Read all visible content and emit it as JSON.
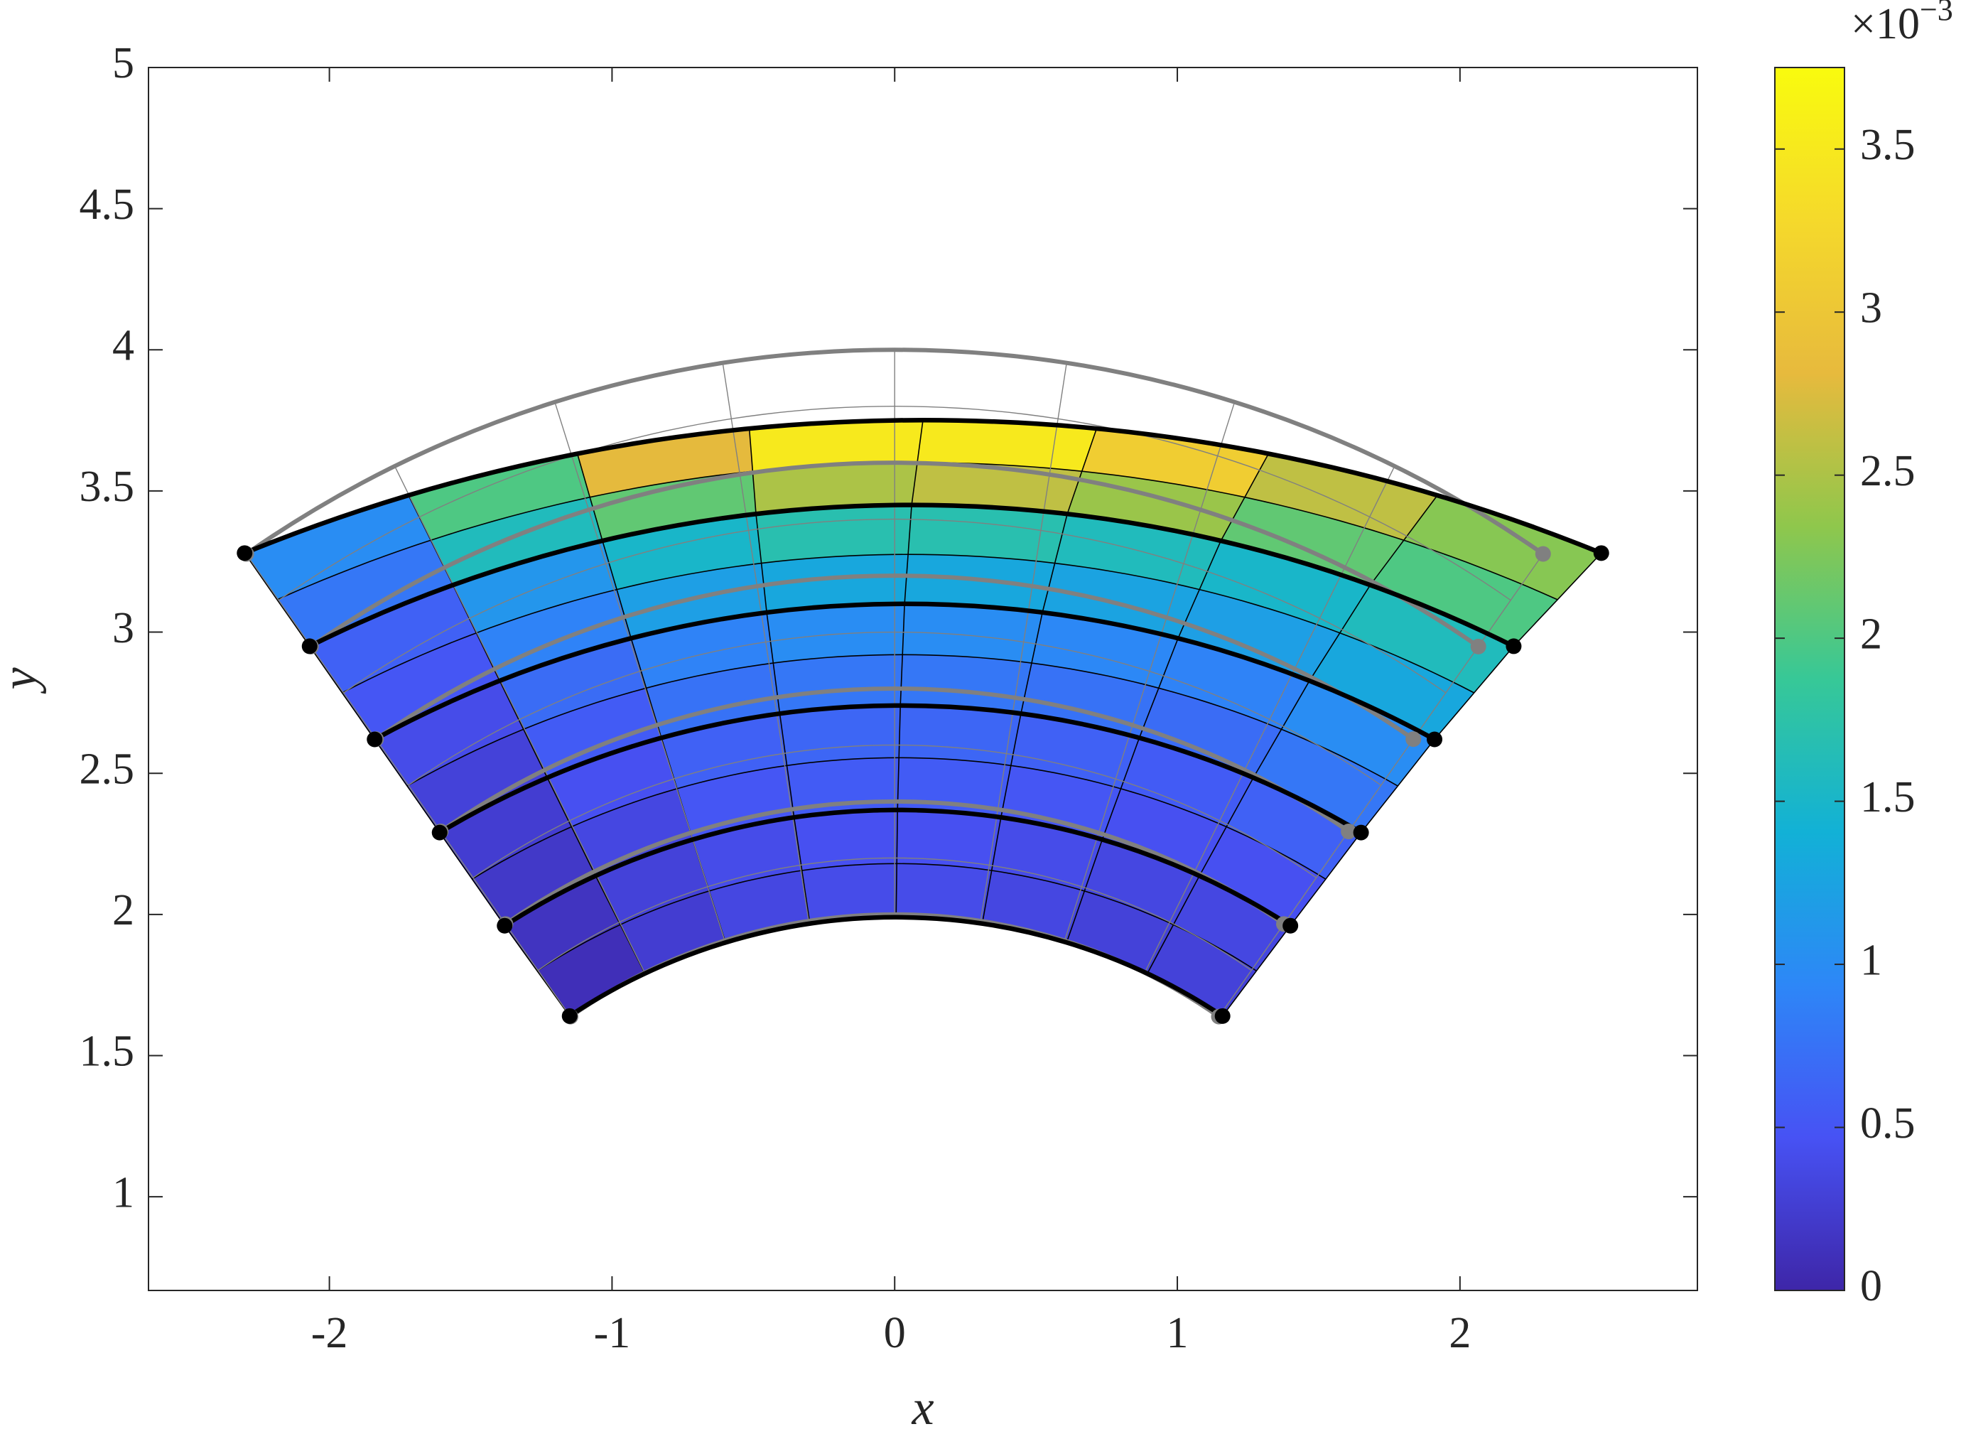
{
  "chart_data": {
    "type": "mesh",
    "xlabel": "x",
    "ylabel": "y",
    "xlim": [
      -2.64,
      2.84
    ],
    "ylim": [
      0.668,
      5
    ],
    "xticks": [
      -2,
      -1,
      0,
      1,
      2
    ],
    "yticks": [
      1,
      1.5,
      2,
      2.5,
      3,
      3.5,
      4,
      4.5,
      5
    ],
    "undeformed": {
      "color": "#808080",
      "curves": [
        {
          "x": [
            -1.147,
            0,
            1.147
          ],
          "y": [
            1.638,
            2,
            1.638
          ]
        },
        {
          "x": [
            -1.377,
            0,
            1.377
          ],
          "y": [
            1.966,
            2.4,
            1.966
          ]
        },
        {
          "x": [
            -1.606,
            0,
            1.606
          ],
          "y": [
            2.294,
            2.8,
            2.294
          ]
        },
        {
          "x": [
            -1.835,
            0,
            1.835
          ],
          "y": [
            2.621,
            3.2,
            2.621
          ]
        },
        {
          "x": [
            -2.065,
            0,
            2.065
          ],
          "y": [
            2.949,
            3.6,
            2.949
          ]
        },
        {
          "x": [
            -2.294,
            0,
            2.294
          ],
          "y": [
            3.277,
            4,
            3.277
          ]
        }
      ]
    },
    "deformed": {
      "color": "#000000",
      "curves": [
        {
          "x": [
            -1.15,
            0,
            1.16
          ],
          "y": [
            1.64,
            1.99,
            1.64
          ]
        },
        {
          "x": [
            -1.38,
            0,
            1.4
          ],
          "y": [
            1.96,
            2.37,
            1.96
          ]
        },
        {
          "x": [
            -1.61,
            0,
            1.65
          ],
          "y": [
            2.29,
            2.74,
            2.29
          ]
        },
        {
          "x": [
            -1.84,
            0,
            1.91
          ],
          "y": [
            2.62,
            3.1,
            2.62
          ]
        },
        {
          "x": [
            -2.07,
            0,
            2.19
          ],
          "y": [
            2.95,
            3.45,
            2.95
          ]
        },
        {
          "x": [
            -2.3,
            0,
            2.5
          ],
          "y": [
            3.28,
            3.75,
            3.28
          ]
        }
      ]
    },
    "cell_values": [
      [
        0.1,
        0.25,
        0.35,
        0.4,
        0.4,
        0.35,
        0.3,
        0.3
      ],
      [
        0.15,
        0.3,
        0.4,
        0.45,
        0.45,
        0.4,
        0.35,
        0.35
      ],
      [
        0.2,
        0.35,
        0.5,
        0.55,
        0.55,
        0.5,
        0.45,
        0.45
      ],
      [
        0.25,
        0.45,
        0.6,
        0.65,
        0.65,
        0.6,
        0.55,
        0.6
      ],
      [
        0.3,
        0.55,
        0.75,
        0.8,
        0.8,
        0.75,
        0.7,
        0.8
      ],
      [
        0.4,
        0.7,
        0.9,
        1.0,
        1.0,
        0.95,
        0.9,
        1.0
      ],
      [
        0.5,
        0.9,
        1.2,
        1.3,
        1.3,
        1.25,
        1.2,
        1.3
      ],
      [
        0.6,
        1.1,
        1.5,
        1.7,
        1.7,
        1.6,
        1.5,
        1.6
      ],
      [
        0.8,
        1.6,
        2.1,
        2.5,
        2.6,
        2.4,
        2.1,
        2.0
      ],
      [
        1.0,
        2.0,
        2.8,
        3.5,
        3.5,
        3.1,
        2.6,
        2.3
      ]
    ],
    "colorbar": {
      "clim": [
        0,
        3.75
      ],
      "ticks": [
        0,
        0.5,
        1,
        1.5,
        2,
        2.5,
        3,
        3.5
      ],
      "multiplier": "×10",
      "exponent": "−3",
      "colormap": "parula"
    }
  }
}
